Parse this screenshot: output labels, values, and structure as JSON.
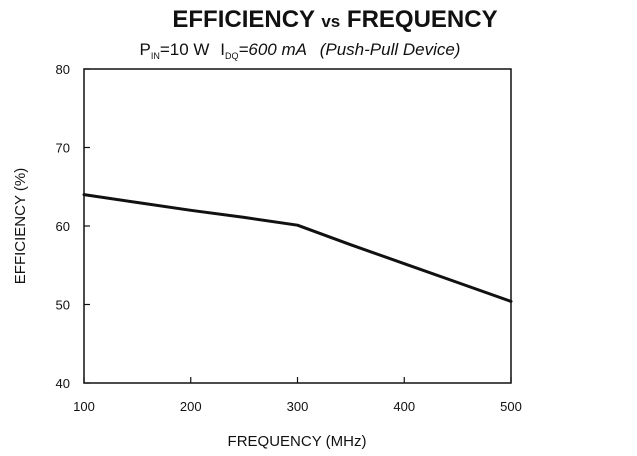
{
  "title": {
    "part1": "EFFICIENCY",
    "part2": "vs",
    "part3": "FREQUENCY"
  },
  "subtitle": {
    "pin_main": "P",
    "pin_sub": "IN",
    "pin_value": "=10 W",
    "idq_main": "I",
    "idq_sub": "DQ",
    "idq_value": "=600 mA",
    "device": "(Push-Pull Device)"
  },
  "chart_data": {
    "type": "line",
    "title": "EFFICIENCY vs FREQUENCY",
    "subtitle": "PIN=10 W IDQ=600 mA (Push-Pull Device)",
    "xlabel": "FREQUENCY (MHz)",
    "ylabel": "EFFICIENCY (%)",
    "xlim": [
      100,
      500
    ],
    "ylim": [
      40,
      80
    ],
    "xticks": [
      "100",
      "200",
      "300",
      "400",
      "500"
    ],
    "yticks": [
      "40",
      "50",
      "60",
      "70",
      "80"
    ],
    "grid": false,
    "series": [
      {
        "x": [
          100,
          150,
          200,
          250,
          300,
          350,
          400,
          450,
          500
        ],
        "y": [
          64,
          63,
          62,
          61.1,
          60.1,
          57.6,
          55.2,
          52.8,
          50.4
        ]
      }
    ]
  },
  "colors": {
    "line": "#111111",
    "axis": "#111111",
    "background": "#ffffff"
  }
}
